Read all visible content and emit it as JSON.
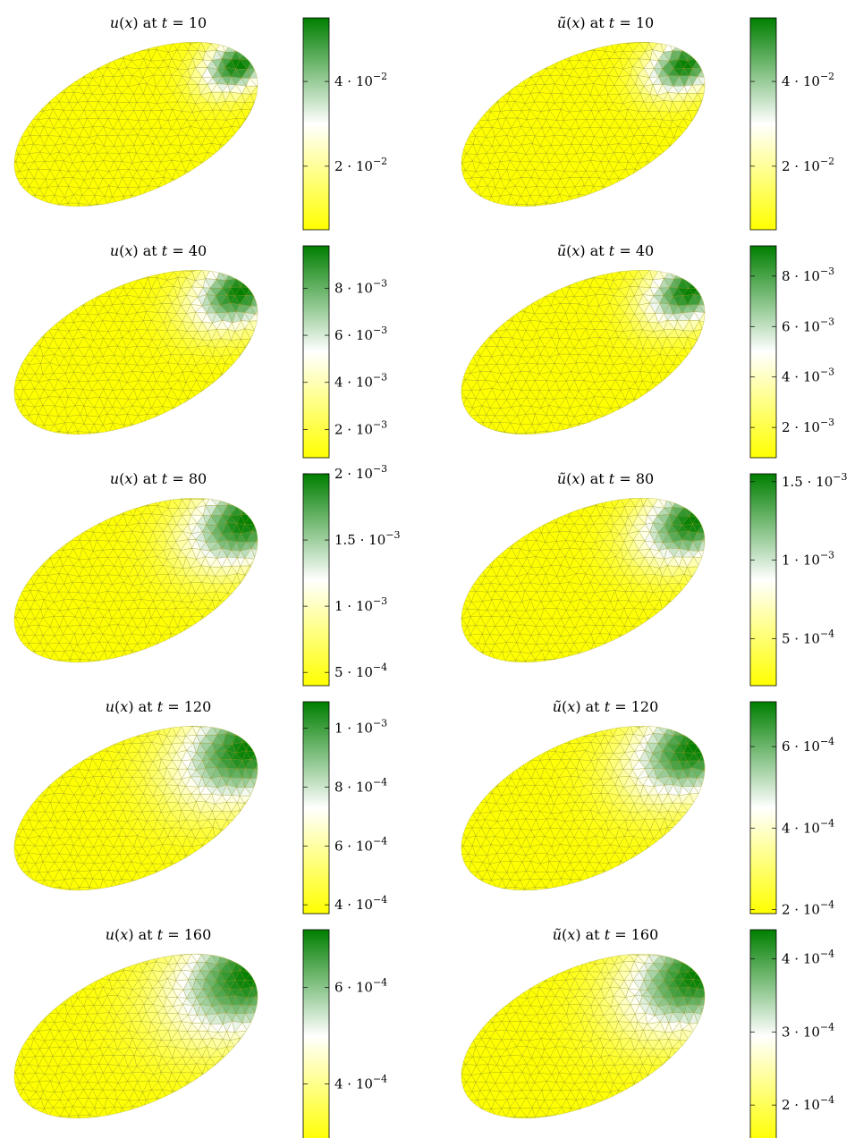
{
  "chart_data": [
    {
      "type": "heatmap",
      "title": "u(x) at t = 10",
      "title_func": "u",
      "title_t": "10",
      "colorbar": {
        "range": [
          0.005,
          0.055
        ],
        "ticks": [
          {
            "value": 0.02,
            "label": "2 · 10",
            "exp": "−2"
          },
          {
            "value": 0.04,
            "label": "4 · 10",
            "exp": "−2"
          }
        ]
      },
      "field": {
        "center": [
          0.95,
          0.42
        ],
        "spread": 0.18,
        "base": 0.0
      }
    },
    {
      "type": "heatmap",
      "title": "ũ(x) at t = 10",
      "title_func": "ũ",
      "title_t": "10",
      "colorbar": {
        "range": [
          0.005,
          0.055
        ],
        "ticks": [
          {
            "value": 0.02,
            "label": "2 · 10",
            "exp": "−2"
          },
          {
            "value": 0.04,
            "label": "4 · 10",
            "exp": "−2"
          }
        ]
      },
      "field": {
        "center": [
          0.95,
          0.42
        ],
        "spread": 0.19,
        "base": 0.0
      }
    },
    {
      "type": "heatmap",
      "title": "u(x) at t = 40",
      "title_func": "u",
      "title_t": "40",
      "colorbar": {
        "range": [
          0.0008,
          0.0098
        ],
        "ticks": [
          {
            "value": 0.002,
            "label": "2 · 10",
            "exp": "−3"
          },
          {
            "value": 0.004,
            "label": "4 · 10",
            "exp": "−3"
          },
          {
            "value": 0.006,
            "label": "6 · 10",
            "exp": "−3"
          },
          {
            "value": 0.008,
            "label": "8 · 10",
            "exp": "−3"
          }
        ]
      },
      "field": {
        "center": [
          0.96,
          0.42
        ],
        "spread": 0.24,
        "base": 0.0
      }
    },
    {
      "type": "heatmap",
      "title": "ũ(x) at t = 40",
      "title_func": "ũ",
      "title_t": "40",
      "colorbar": {
        "range": [
          0.0008,
          0.0092
        ],
        "ticks": [
          {
            "value": 0.002,
            "label": "2 · 10",
            "exp": "−3"
          },
          {
            "value": 0.004,
            "label": "4 · 10",
            "exp": "−3"
          },
          {
            "value": 0.006,
            "label": "6 · 10",
            "exp": "−3"
          },
          {
            "value": 0.008,
            "label": "8 · 10",
            "exp": "−3"
          }
        ]
      },
      "field": {
        "center": [
          0.97,
          0.42
        ],
        "spread": 0.22,
        "base": 0.0
      }
    },
    {
      "type": "heatmap",
      "title": "u(x) at t = 80",
      "title_func": "u",
      "title_t": "80",
      "colorbar": {
        "range": [
          0.0004,
          0.002
        ],
        "ticks": [
          {
            "value": 0.0005,
            "label": "5 · 10",
            "exp": "−4"
          },
          {
            "value": 0.001,
            "label": "1 · 10",
            "exp": "−3"
          },
          {
            "value": 0.0015,
            "label": "1.5 · 10",
            "exp": "−3"
          },
          {
            "value": 0.002,
            "label": "2 · 10",
            "exp": "−3"
          }
        ]
      },
      "field": {
        "center": [
          0.98,
          0.45
        ],
        "spread": 0.3,
        "base": 0.0
      }
    },
    {
      "type": "heatmap",
      "title": "ũ(x) at t = 80",
      "title_func": "ũ",
      "title_t": "80",
      "colorbar": {
        "range": [
          0.0002,
          0.00155
        ],
        "ticks": [
          {
            "value": 0.0005,
            "label": "5 · 10",
            "exp": "−4"
          },
          {
            "value": 0.001,
            "label": "1 · 10",
            "exp": "−3"
          },
          {
            "value": 0.0015,
            "label": "1.5 · 10",
            "exp": "−3"
          }
        ]
      },
      "field": {
        "center": [
          0.98,
          0.45
        ],
        "spread": 0.27,
        "base": 0.0
      }
    },
    {
      "type": "heatmap",
      "title": "u(x) at t = 120",
      "title_func": "u",
      "title_t": "120",
      "colorbar": {
        "range": [
          0.00037,
          0.00109
        ],
        "ticks": [
          {
            "value": 0.0004,
            "label": "4 · 10",
            "exp": "−4"
          },
          {
            "value": 0.0006,
            "label": "6 · 10",
            "exp": "−4"
          },
          {
            "value": 0.0008,
            "label": "8 · 10",
            "exp": "−4"
          },
          {
            "value": 0.001,
            "label": "1 · 10",
            "exp": "−3"
          }
        ]
      },
      "field": {
        "center": [
          0.99,
          0.45
        ],
        "spread": 0.36,
        "base": 0.0
      }
    },
    {
      "type": "heatmap",
      "title": "ũ(x) at t = 120",
      "title_func": "ũ",
      "title_t": "120",
      "colorbar": {
        "range": [
          0.00019,
          0.00071
        ],
        "ticks": [
          {
            "value": 0.0002,
            "label": "2 · 10",
            "exp": "−4"
          },
          {
            "value": 0.0004,
            "label": "4 · 10",
            "exp": "−4"
          },
          {
            "value": 0.0006,
            "label": "6 · 10",
            "exp": "−4"
          }
        ]
      },
      "field": {
        "center": [
          0.99,
          0.45
        ],
        "spread": 0.33,
        "base": 0.0
      }
    },
    {
      "type": "heatmap",
      "title": "u(x) at t = 160",
      "title_func": "u",
      "title_t": "160",
      "colorbar": {
        "range": [
          0.00028,
          0.00072
        ],
        "ticks": [
          {
            "value": 0.0004,
            "label": "4 · 10",
            "exp": "−4"
          },
          {
            "value": 0.0006,
            "label": "6 · 10",
            "exp": "−4"
          }
        ]
      },
      "field": {
        "center": [
          1.0,
          0.45
        ],
        "spread": 0.4,
        "base": 0.0
      }
    },
    {
      "type": "heatmap",
      "title": "ũ(x) at t = 160",
      "title_func": "ũ",
      "title_t": "160",
      "colorbar": {
        "range": [
          0.00015,
          0.00044
        ],
        "ticks": [
          {
            "value": 0.0002,
            "label": "2 · 10",
            "exp": "−4"
          },
          {
            "value": 0.0003,
            "label": "3 · 10",
            "exp": "−4"
          },
          {
            "value": 0.0004,
            "label": "4 · 10",
            "exp": "−4"
          }
        ]
      },
      "field": {
        "center": [
          1.0,
          0.45
        ],
        "spread": 0.37,
        "base": 0.0
      }
    }
  ],
  "colormap": {
    "low": "#ffff00",
    "mid": "#ffffff",
    "high": "#007f00"
  },
  "mesh_color": "#9a9a2a"
}
